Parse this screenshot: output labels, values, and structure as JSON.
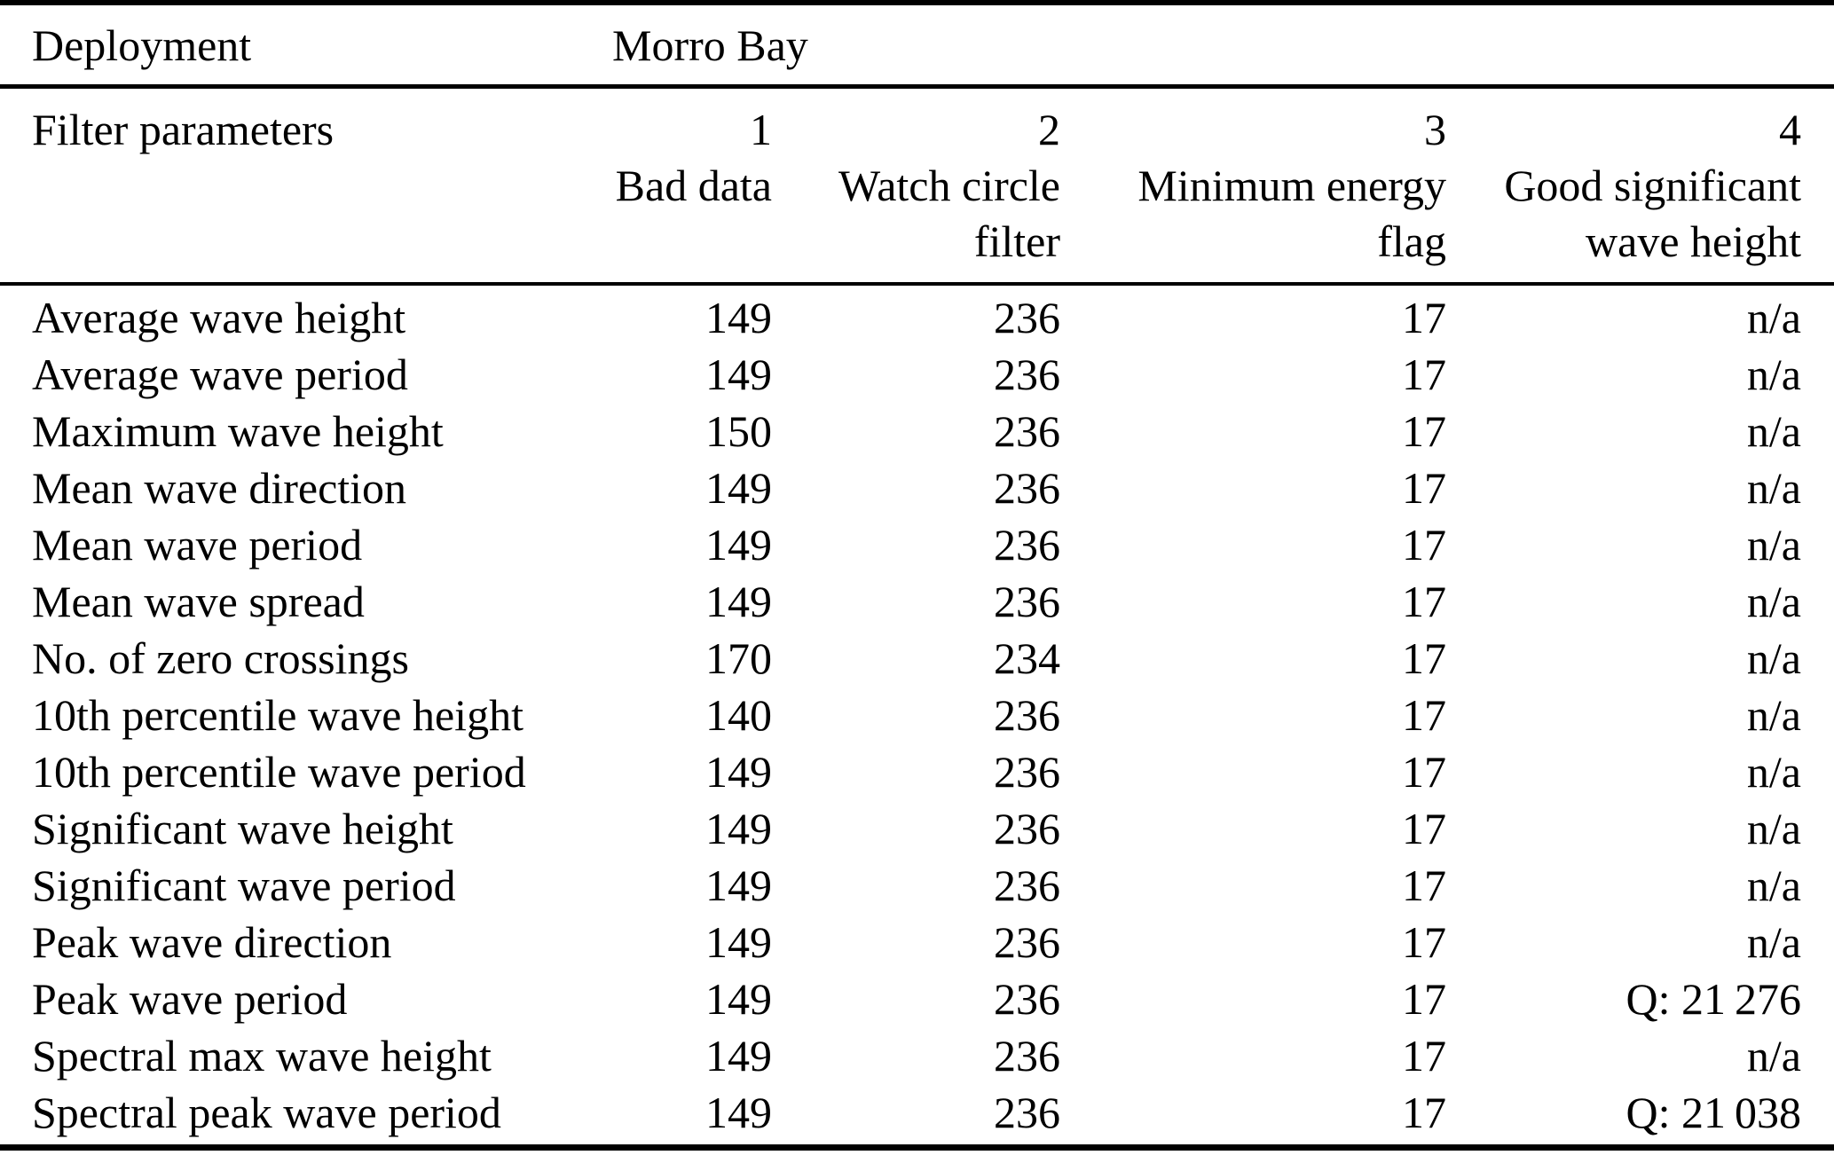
{
  "table": {
    "deployment_label": "Deployment",
    "deployment_value": "Morro Bay",
    "header": {
      "row_label": "Filter parameters",
      "columns": [
        {
          "number": "1",
          "line1": "Bad data",
          "line2": ""
        },
        {
          "number": "2",
          "line1": "Watch circle",
          "line2": "filter"
        },
        {
          "number": "3",
          "line1": "Minimum energy",
          "line2": "flag"
        },
        {
          "number": "4",
          "line1": "Good significant",
          "line2": "wave height"
        }
      ]
    },
    "rows": [
      {
        "label": "Average wave height",
        "values": [
          "149",
          "236",
          "17",
          "n/a"
        ]
      },
      {
        "label": "Average wave period",
        "values": [
          "149",
          "236",
          "17",
          "n/a"
        ]
      },
      {
        "label": "Maximum wave height",
        "values": [
          "150",
          "236",
          "17",
          "n/a"
        ]
      },
      {
        "label": "Mean wave direction",
        "values": [
          "149",
          "236",
          "17",
          "n/a"
        ]
      },
      {
        "label": "Mean wave period",
        "values": [
          "149",
          "236",
          "17",
          "n/a"
        ]
      },
      {
        "label": "Mean wave spread",
        "values": [
          "149",
          "236",
          "17",
          "n/a"
        ]
      },
      {
        "label": "No. of zero crossings",
        "values": [
          "170",
          "234",
          "17",
          "n/a"
        ]
      },
      {
        "label": "10th percentile wave height",
        "values": [
          "140",
          "236",
          "17",
          "n/a"
        ]
      },
      {
        "label": "10th percentile wave period",
        "values": [
          "149",
          "236",
          "17",
          "n/a"
        ]
      },
      {
        "label": "Significant wave height",
        "values": [
          "149",
          "236",
          "17",
          "n/a"
        ]
      },
      {
        "label": "Significant wave period",
        "values": [
          "149",
          "236",
          "17",
          "n/a"
        ]
      },
      {
        "label": "Peak wave direction",
        "values": [
          "149",
          "236",
          "17",
          "n/a"
        ]
      },
      {
        "label": "Peak wave period",
        "values": [
          "149",
          "236",
          "17",
          "Q: 21 276"
        ]
      },
      {
        "label": "Spectral max wave height",
        "values": [
          "149",
          "236",
          "17",
          "n/a"
        ]
      },
      {
        "label": "Spectral peak wave period",
        "values": [
          "149",
          "236",
          "17",
          "Q: 21 038"
        ]
      }
    ]
  }
}
